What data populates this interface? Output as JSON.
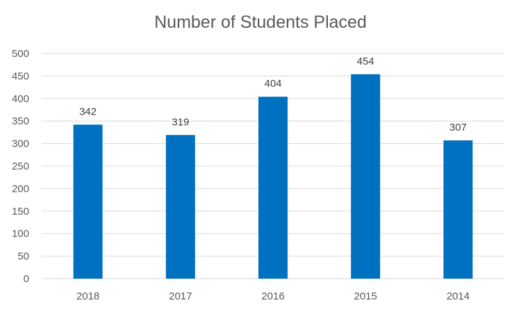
{
  "chart_data": {
    "type": "bar",
    "title": "Number of Students Placed",
    "categories": [
      "2018",
      "2017",
      "2016",
      "2015",
      "2014"
    ],
    "values": [
      342,
      319,
      404,
      454,
      307
    ],
    "xlabel": "",
    "ylabel": "",
    "ylim": [
      0,
      500
    ],
    "yticks": [
      0,
      50,
      100,
      150,
      200,
      250,
      300,
      350,
      400,
      450,
      500
    ],
    "grid": true,
    "legend": "none",
    "bar_color": "#0070C0",
    "data_labels": true
  }
}
